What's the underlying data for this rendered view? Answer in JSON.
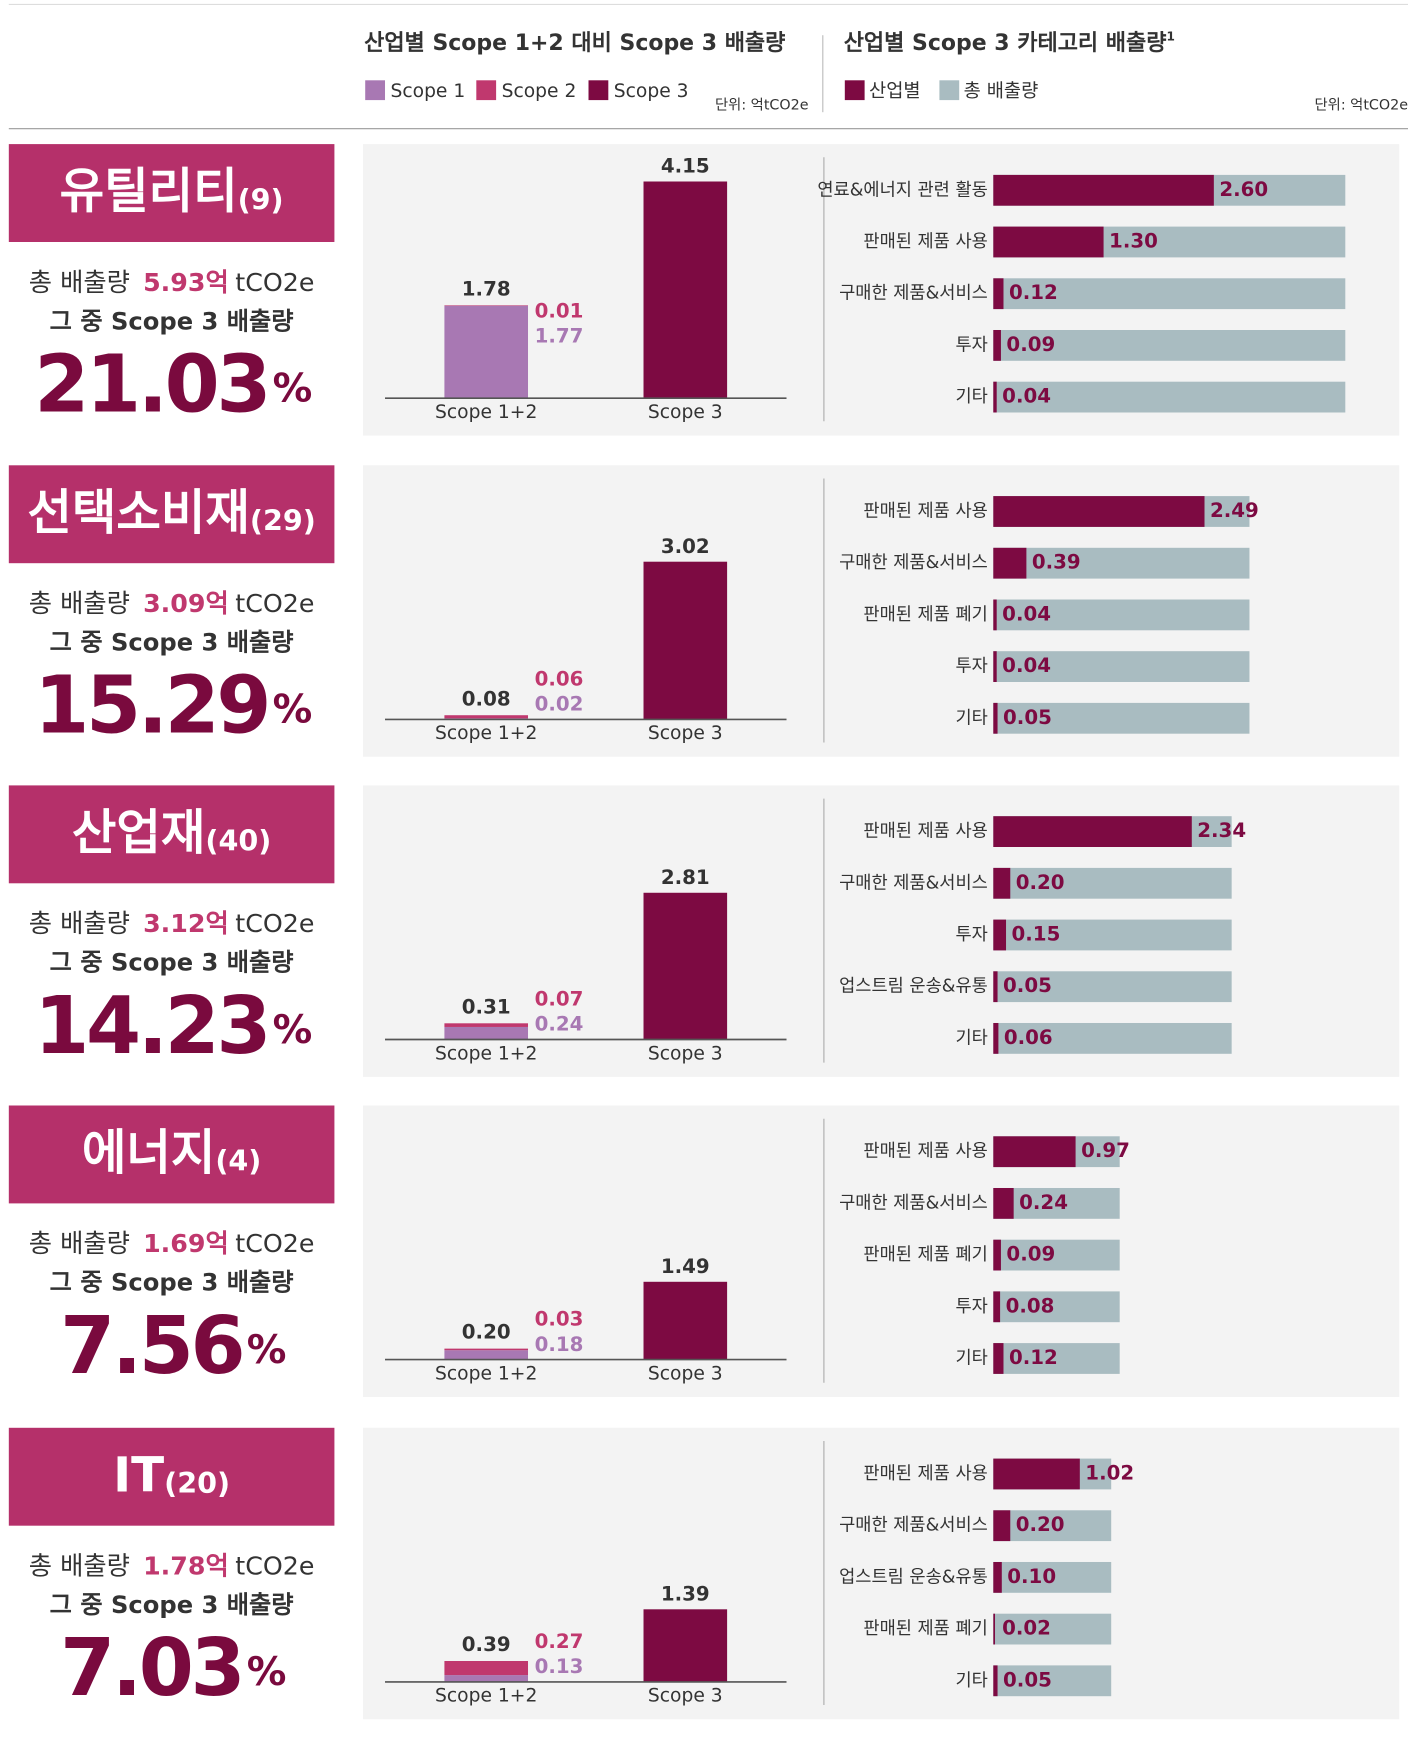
{
  "header": {
    "left_title": "산업별 Scope 1+2 대비 Scope 3 배출량",
    "right_title": "산업별 Scope 3 카테고리 배출량",
    "right_title_sup": "1",
    "legend_left": [
      {
        "name": "Scope 1",
        "color": "#a878b3"
      },
      {
        "name": "Scope 2",
        "color": "#c0386e"
      },
      {
        "name": "Scope 3",
        "color": "#7d0a42"
      }
    ],
    "unit_left": "단위: 억tCO2e",
    "legend_right": [
      {
        "name": "산업별",
        "color": "#7d0a42"
      },
      {
        "name": "총 배출량",
        "color": "#a9bcc1"
      }
    ],
    "unit_right": "단위: 억tCO2e"
  },
  "industries": [
    {
      "name": "유틸리티",
      "count": "(9)",
      "total_label": "총 배출량",
      "total": "5.93억",
      "total_unit": "tCO2e",
      "scope3_label": "그 중 Scope 3 배출량",
      "share": "21.03",
      "share_unit": "%",
      "scope": {
        "categories": [
          "Scope 1+2",
          "Scope 3"
        ],
        "scope1": {
          "value": 1.77,
          "label": "1.77"
        },
        "scope2": {
          "value": 0.01,
          "label": "0.01"
        },
        "scope12_total": {
          "value": 1.78,
          "label": "1.78"
        },
        "scope3": {
          "value": 4.15,
          "label": "4.15"
        }
      },
      "categories": [
        {
          "name": "연료&에너지 관련 활동",
          "value": 2.6,
          "label": "2.60"
        },
        {
          "name": "판매된 제품 사용",
          "value": 1.3,
          "label": "1.30"
        },
        {
          "name": "구매한 제품&서비스",
          "value": 0.12,
          "label": "0.12"
        },
        {
          "name": "투자",
          "value": 0.09,
          "label": "0.09"
        },
        {
          "name": "기타",
          "value": 0.04,
          "label": "0.04"
        }
      ]
    },
    {
      "name": "선택소비재",
      "count": "(29)",
      "total_label": "총 배출량",
      "total": "3.09억",
      "total_unit": "tCO2e",
      "scope3_label": "그 중 Scope 3 배출량",
      "share": "15.29",
      "share_unit": "%",
      "scope": {
        "categories": [
          "Scope 1+2",
          "Scope 3"
        ],
        "scope1": {
          "value": 0.02,
          "label": "0.02"
        },
        "scope2": {
          "value": 0.06,
          "label": "0.06"
        },
        "scope12_total": {
          "value": 0.08,
          "label": "0.08"
        },
        "scope3": {
          "value": 3.02,
          "label": "3.02"
        }
      },
      "categories": [
        {
          "name": "판매된 제품 사용",
          "value": 2.49,
          "label": "2.49"
        },
        {
          "name": "구매한 제품&서비스",
          "value": 0.39,
          "label": "0.39"
        },
        {
          "name": "판매된 제품 폐기",
          "value": 0.04,
          "label": "0.04"
        },
        {
          "name": "투자",
          "value": 0.04,
          "label": "0.04"
        },
        {
          "name": "기타",
          "value": 0.05,
          "label": "0.05"
        }
      ]
    },
    {
      "name": "산업재",
      "count": "(40)",
      "total_label": "총 배출량",
      "total": "3.12억",
      "total_unit": "tCO2e",
      "scope3_label": "그 중 Scope 3 배출량",
      "share": "14.23",
      "share_unit": "%",
      "scope": {
        "categories": [
          "Scope 1+2",
          "Scope 3"
        ],
        "scope1": {
          "value": 0.24,
          "label": "0.24"
        },
        "scope2": {
          "value": 0.07,
          "label": "0.07"
        },
        "scope12_total": {
          "value": 0.31,
          "label": "0.31"
        },
        "scope3": {
          "value": 2.81,
          "label": "2.81"
        }
      },
      "categories": [
        {
          "name": "판매된 제품 사용",
          "value": 2.34,
          "label": "2.34"
        },
        {
          "name": "구매한 제품&서비스",
          "value": 0.2,
          "label": "0.20"
        },
        {
          "name": "투자",
          "value": 0.15,
          "label": "0.15"
        },
        {
          "name": "업스트림 운송&유통",
          "value": 0.05,
          "label": "0.05"
        },
        {
          "name": "기타",
          "value": 0.06,
          "label": "0.06"
        }
      ]
    },
    {
      "name": "에너지",
      "count": "(4)",
      "total_label": "총 배출량",
      "total": "1.69억",
      "total_unit": "tCO2e",
      "scope3_label": "그 중 Scope 3 배출량",
      "share": "7.56",
      "share_unit": "%",
      "scope": {
        "categories": [
          "Scope 1+2",
          "Scope 3"
        ],
        "scope1": {
          "value": 0.18,
          "label": "0.18"
        },
        "scope2": {
          "value": 0.03,
          "label": "0.03"
        },
        "scope12_total": {
          "value": 0.2,
          "label": "0.20"
        },
        "scope3": {
          "value": 1.49,
          "label": "1.49"
        }
      },
      "categories": [
        {
          "name": "판매된 제품 사용",
          "value": 0.97,
          "label": "0.97"
        },
        {
          "name": "구매한 제품&서비스",
          "value": 0.24,
          "label": "0.24"
        },
        {
          "name": "판매된 제품 폐기",
          "value": 0.09,
          "label": "0.09"
        },
        {
          "name": "투자",
          "value": 0.08,
          "label": "0.08"
        },
        {
          "name": "기타",
          "value": 0.12,
          "label": "0.12"
        }
      ]
    },
    {
      "name": "IT",
      "count": "(20)",
      "total_label": "총 배출량",
      "total": "1.78억",
      "total_unit": "tCO2e",
      "scope3_label": "그 중 Scope 3 배출량",
      "share": "7.03",
      "share_unit": "%",
      "scope": {
        "categories": [
          "Scope 1+2",
          "Scope 3"
        ],
        "scope1": {
          "value": 0.13,
          "label": "0.13"
        },
        "scope2": {
          "value": 0.27,
          "label": "0.27"
        },
        "scope12_total": {
          "value": 0.39,
          "label": "0.39"
        },
        "scope3": {
          "value": 1.39,
          "label": "1.39"
        }
      },
      "categories": [
        {
          "name": "판매된 제품 사용",
          "value": 1.02,
          "label": "1.02"
        },
        {
          "name": "구매한 제품&서비스",
          "value": 0.2,
          "label": "0.20"
        },
        {
          "name": "업스트림 운송&유통",
          "value": 0.1,
          "label": "0.10"
        },
        {
          "name": "판매된 제품 폐기",
          "value": 0.02,
          "label": "0.02"
        },
        {
          "name": "기타",
          "value": 0.05,
          "label": "0.05"
        }
      ]
    }
  ]
}
